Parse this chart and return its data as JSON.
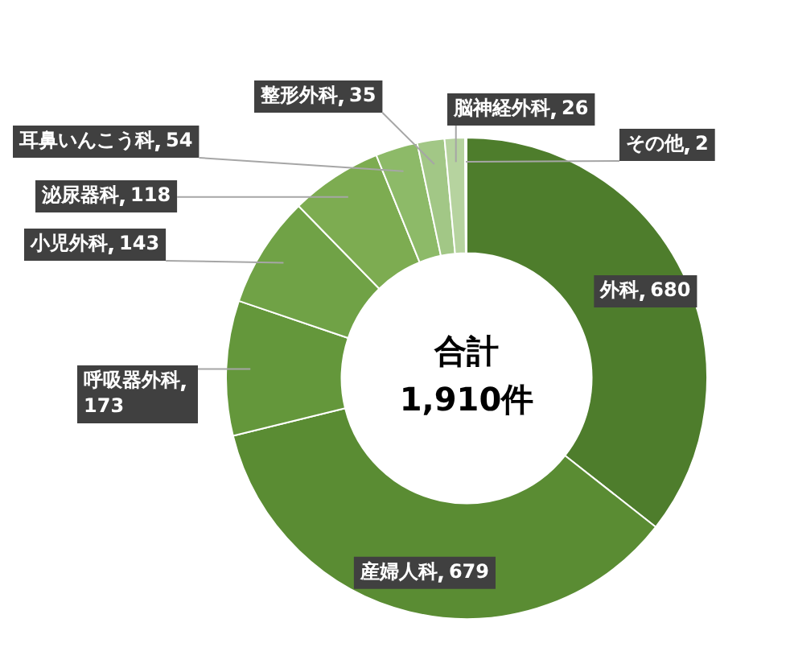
{
  "chart_data": {
    "type": "donut",
    "categories": [
      "外科",
      "産婦人科",
      "呼吸器外科",
      "小児外科",
      "泌尿器科",
      "耳鼻いんこう科",
      "整形外科",
      "脳神経外科",
      "その他"
    ],
    "values": [
      680,
      679,
      173,
      143,
      118,
      54,
      35,
      26,
      2
    ],
    "colors": [
      "#4e7d2c",
      "#5a8c33",
      "#64973b",
      "#70a246",
      "#7dac51",
      "#8dba68",
      "#a2c786",
      "#b6d39f",
      "#c9deb7"
    ],
    "annotations": [
      "合計\n1,910件"
    ],
    "data_labels": true,
    "legend": false
  }
}
